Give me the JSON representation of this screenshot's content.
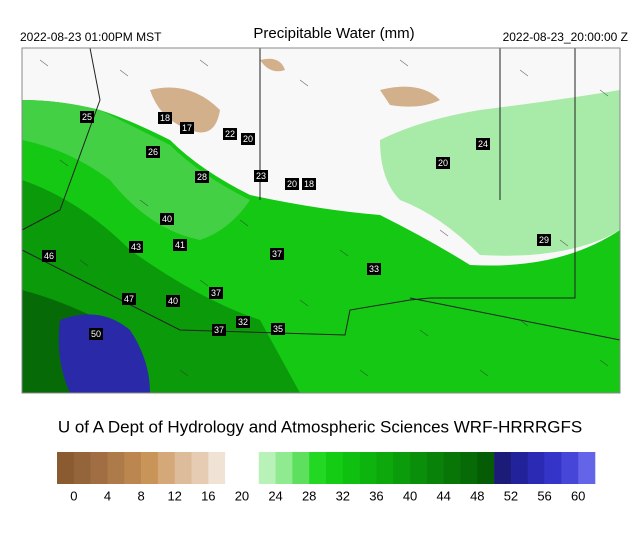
{
  "header": {
    "left": "2022-08-23 01:00PM MST",
    "title": "Precipitable Water (mm)",
    "right": "2022-08-23_20:00:00 Z"
  },
  "stations": [
    25,
    18,
    17,
    22,
    20,
    26,
    28,
    23,
    20,
    18,
    24,
    20,
    40,
    43,
    41,
    46,
    37,
    33,
    29,
    47,
    40,
    37,
    50,
    37,
    32,
    35
  ],
  "footer": "U of A Dept of Hydrology and Atmospheric Sciences WRF-HRRRGFS",
  "colorbar": {
    "colors": [
      "#8a5a30",
      "#94643a",
      "#a06e42",
      "#ad7a4a",
      "#bb8650",
      "#c99458",
      "#d4a878",
      "#dcbc9a",
      "#e6ccb2",
      "#f0e2d4",
      "#ffffff",
      "#ffffff",
      "#b8f2b8",
      "#90ea90",
      "#5ee05e",
      "#22d822",
      "#14cc14",
      "#10c010",
      "#0eb40e",
      "#0ca80c",
      "#0a9c0a",
      "#098f09",
      "#088208",
      "#077607",
      "#066a06",
      "#055c05",
      "#1c1c78",
      "#22229a",
      "#2a2ab4",
      "#3434c8",
      "#4646d8",
      "#6464e8"
    ],
    "ticks": [
      0,
      4,
      8,
      12,
      16,
      20,
      24,
      28,
      32,
      36,
      40,
      44,
      48,
      52,
      56,
      60
    ]
  }
}
